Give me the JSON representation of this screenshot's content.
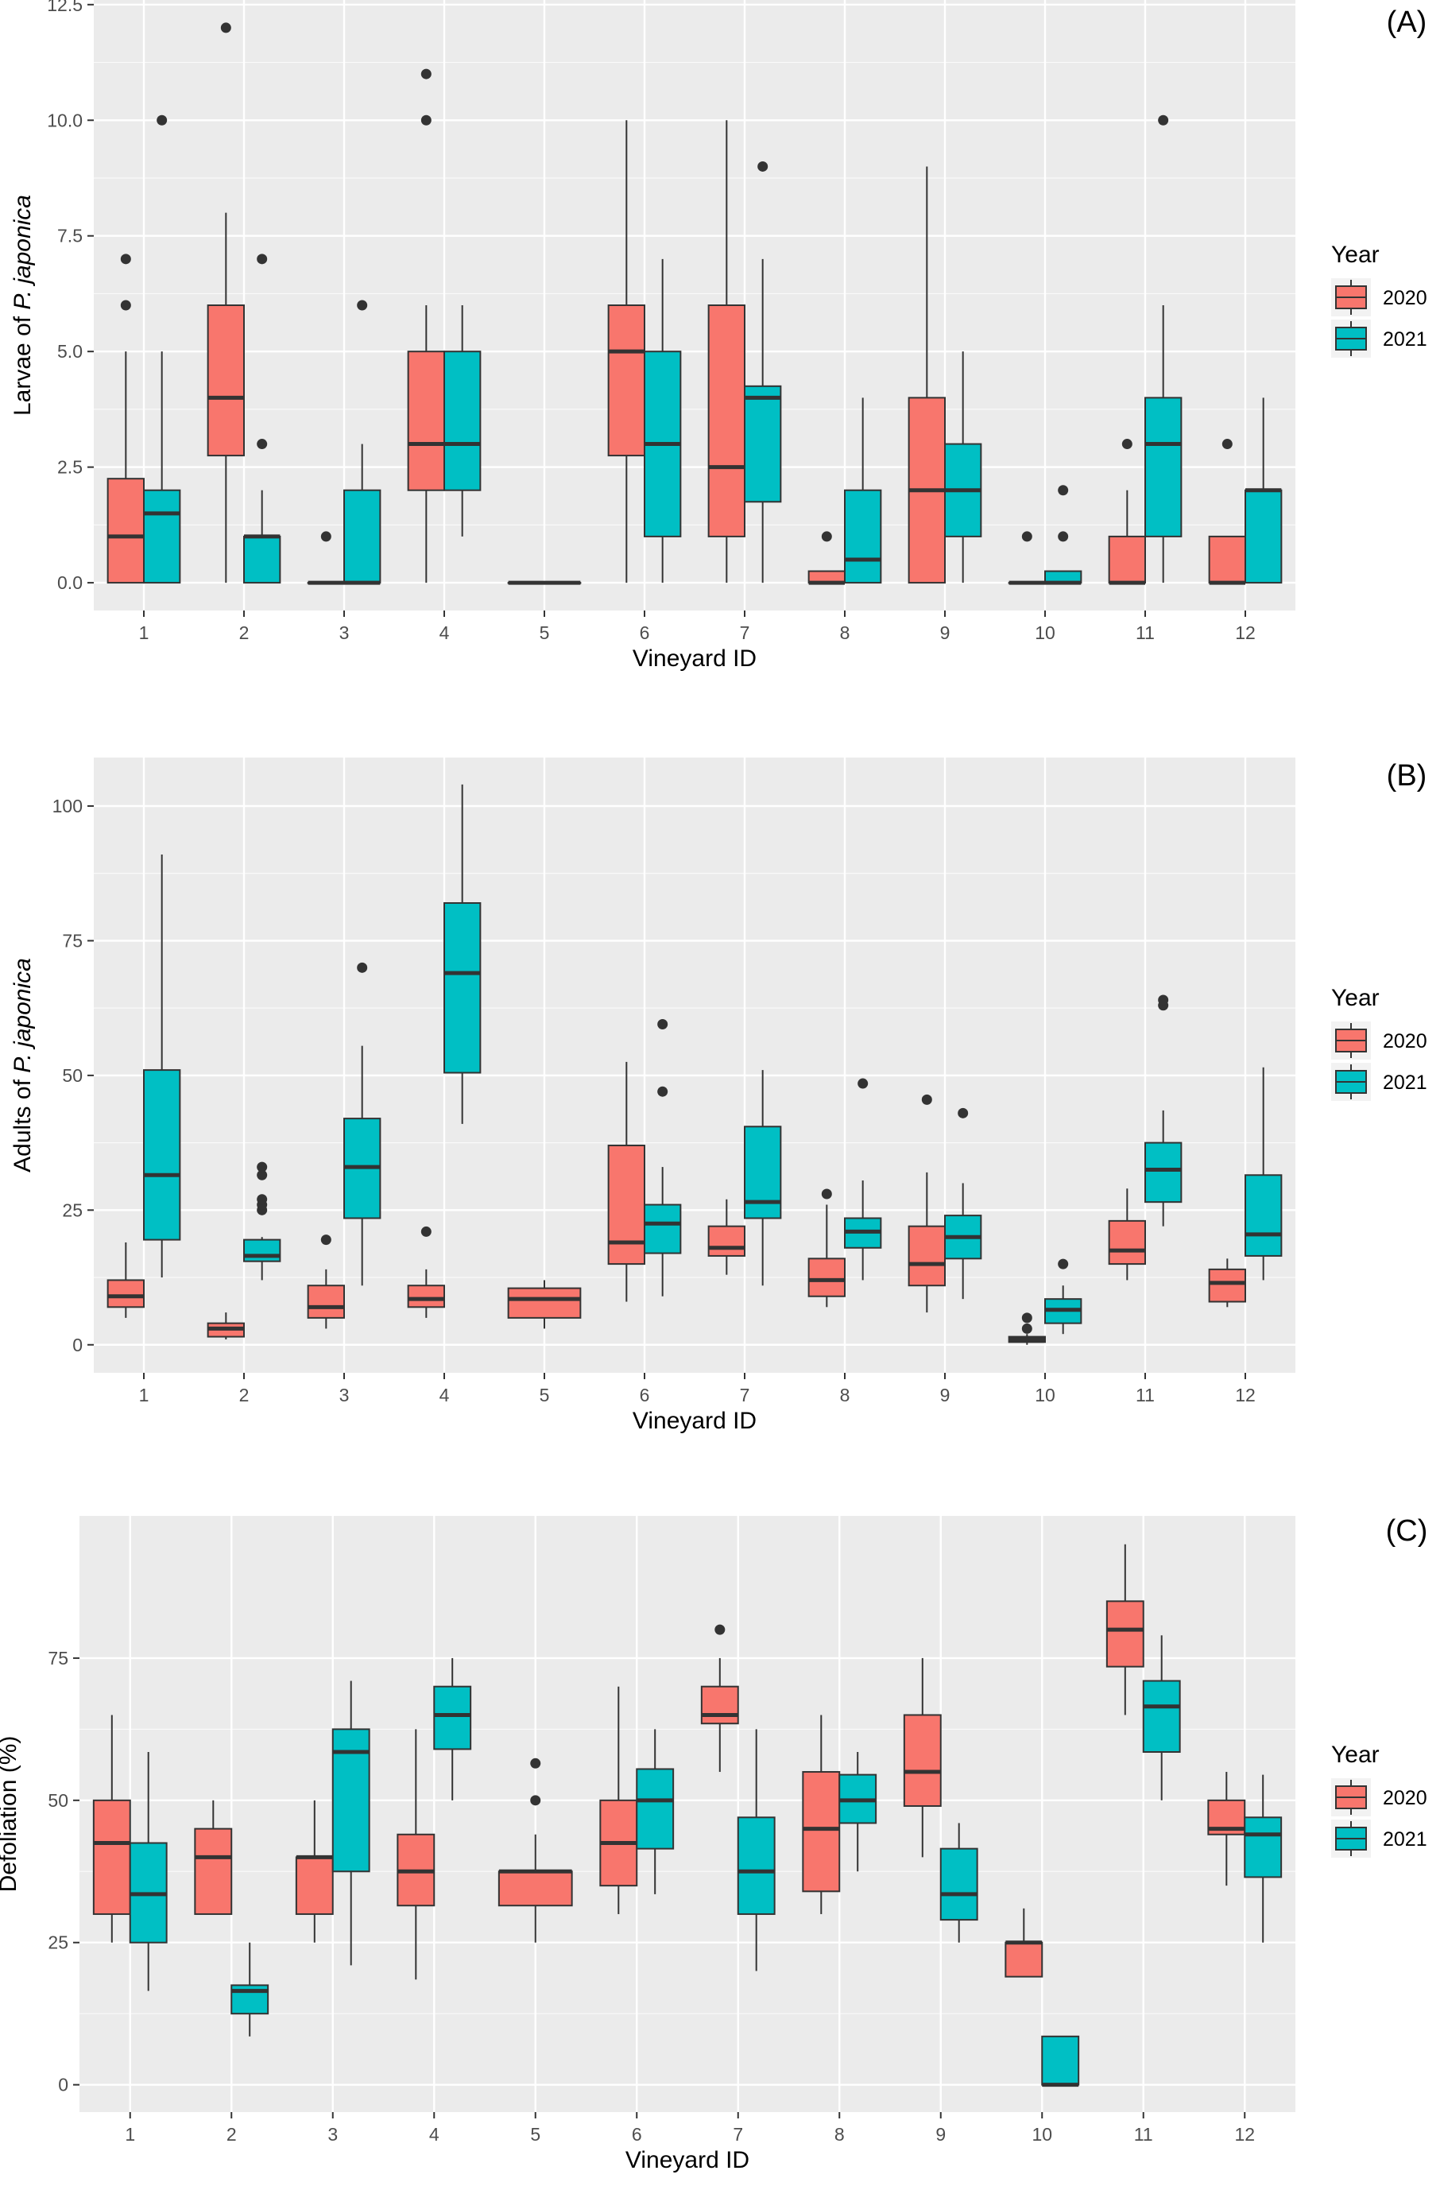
{
  "colors": {
    "year_2020": "#F8766D",
    "year_2021": "#00BFC4",
    "panel_bg": "#EBEBEB",
    "grid": "#FFFFFF",
    "box_stroke": "#333333",
    "text": "#4D4D4D"
  },
  "legend": {
    "title": "Year",
    "entries": [
      "2020",
      "2021"
    ]
  },
  "chart_data": [
    {
      "type": "boxplot",
      "panel_label": "(A)",
      "xlabel": "Vineyard ID",
      "ylabel_prefix": "Larvae of ",
      "ylabel_italic": "P. japonica",
      "ylabel_suffix": "",
      "categories": [
        "1",
        "2",
        "3",
        "4",
        "5",
        "6",
        "7",
        "8",
        "9",
        "10",
        "11",
        "12"
      ],
      "yticks": [
        "0.0",
        "2.5",
        "5.0",
        "7.5",
        "10.0",
        "12.5"
      ],
      "ytick_values": [
        0,
        2.5,
        5,
        7.5,
        10,
        12.5
      ],
      "ylim": [
        -0.6,
        12.6
      ],
      "grid": true,
      "legend_position": "right",
      "series": [
        {
          "name": "2020",
          "boxes": [
            {
              "x": "1",
              "min": 0,
              "q1": 0,
              "median": 1,
              "q3": 2.25,
              "max": 5,
              "outliers": [
                6,
                7
              ]
            },
            {
              "x": "2",
              "min": 0,
              "q1": 2.75,
              "median": 4,
              "q3": 6,
              "max": 8,
              "outliers": [
                12
              ]
            },
            {
              "x": "3",
              "min": 0,
              "q1": 0,
              "median": 0,
              "q3": 0,
              "max": 0,
              "outliers": [
                1
              ]
            },
            {
              "x": "4",
              "min": 0,
              "q1": 2,
              "median": 3,
              "q3": 5,
              "max": 6,
              "outliers": [
                10,
                11
              ]
            },
            {
              "x": "5",
              "min": 0,
              "q1": 0,
              "median": 0,
              "q3": 0,
              "max": 0,
              "outliers": []
            },
            {
              "x": "6",
              "min": 0,
              "q1": 2.75,
              "median": 5,
              "q3": 6,
              "max": 10,
              "outliers": []
            },
            {
              "x": "7",
              "min": 0,
              "q1": 1,
              "median": 2.5,
              "q3": 6,
              "max": 10,
              "outliers": []
            },
            {
              "x": "8",
              "min": 0,
              "q1": 0,
              "median": 0,
              "q3": 0.25,
              "max": 0.25,
              "outliers": [
                1
              ]
            },
            {
              "x": "9",
              "min": 0,
              "q1": 0,
              "median": 2,
              "q3": 4,
              "max": 9,
              "outliers": []
            },
            {
              "x": "10",
              "min": 0,
              "q1": 0,
              "median": 0,
              "q3": 0,
              "max": 0,
              "outliers": [
                1
              ]
            },
            {
              "x": "11",
              "min": 0,
              "q1": 0,
              "median": 0,
              "q3": 1,
              "max": 2,
              "outliers": [
                3
              ]
            },
            {
              "x": "12",
              "min": 0,
              "q1": 0,
              "median": 0,
              "q3": 1,
              "max": 1,
              "outliers": [
                3
              ]
            }
          ]
        },
        {
          "name": "2021",
          "boxes": [
            {
              "x": "1",
              "min": 0,
              "q1": 0,
              "median": 1.5,
              "q3": 2,
              "max": 5,
              "outliers": [
                10
              ]
            },
            {
              "x": "2",
              "min": 0,
              "q1": 0,
              "median": 1,
              "q3": 1,
              "max": 2,
              "outliers": [
                3,
                7
              ]
            },
            {
              "x": "3",
              "min": 0,
              "q1": 0,
              "median": 0,
              "q3": 2,
              "max": 3,
              "outliers": [
                6
              ]
            },
            {
              "x": "4",
              "min": 1,
              "q1": 2,
              "median": 3,
              "q3": 5,
              "max": 6,
              "outliers": []
            },
            {
              "x": "5",
              "min": 0,
              "q1": 0,
              "median": 0,
              "q3": 0,
              "max": 0,
              "outliers": []
            },
            {
              "x": "6",
              "min": 0,
              "q1": 1,
              "median": 3,
              "q3": 5,
              "max": 7,
              "outliers": []
            },
            {
              "x": "7",
              "min": 0,
              "q1": 1.75,
              "median": 4,
              "q3": 4.25,
              "max": 7,
              "outliers": [
                9
              ]
            },
            {
              "x": "8",
              "min": 0,
              "q1": 0,
              "median": 0.5,
              "q3": 2,
              "max": 4,
              "outliers": []
            },
            {
              "x": "9",
              "min": 0,
              "q1": 1,
              "median": 2,
              "q3": 3,
              "max": 5,
              "outliers": []
            },
            {
              "x": "10",
              "min": 0,
              "q1": 0,
              "median": 0,
              "q3": 0.25,
              "max": 0.25,
              "outliers": [
                1,
                2
              ]
            },
            {
              "x": "11",
              "min": 0,
              "q1": 1,
              "median": 3,
              "q3": 4,
              "max": 6,
              "outliers": [
                10
              ]
            },
            {
              "x": "12",
              "min": 0,
              "q1": 0,
              "median": 2,
              "q3": 2,
              "max": 4,
              "outliers": []
            }
          ]
        }
      ]
    },
    {
      "type": "boxplot",
      "panel_label": "(B)",
      "xlabel": "Vineyard ID",
      "ylabel_prefix": "Adults of ",
      "ylabel_italic": "P. japonica",
      "ylabel_suffix": "",
      "categories": [
        "1",
        "2",
        "3",
        "4",
        "5",
        "6",
        "7",
        "8",
        "9",
        "10",
        "11",
        "12"
      ],
      "yticks": [
        "0",
        "25",
        "50",
        "75",
        "100"
      ],
      "ytick_values": [
        0,
        25,
        50,
        75,
        100
      ],
      "ylim": [
        -5.2,
        109
      ],
      "grid": true,
      "legend_position": "right",
      "series": [
        {
          "name": "2020",
          "boxes": [
            {
              "x": "1",
              "min": 5,
              "q1": 7,
              "median": 9,
              "q3": 12,
              "max": 19,
              "outliers": []
            },
            {
              "x": "2",
              "min": 1,
              "q1": 1.5,
              "median": 3,
              "q3": 4,
              "max": 6,
              "outliers": []
            },
            {
              "x": "3",
              "min": 3,
              "q1": 5,
              "median": 7,
              "q3": 11,
              "max": 14,
              "outliers": [
                19.5
              ]
            },
            {
              "x": "4",
              "min": 5,
              "q1": 7,
              "median": 8.5,
              "q3": 11,
              "max": 14,
              "outliers": [
                21
              ]
            },
            {
              "x": "5",
              "min": 3,
              "q1": 5,
              "median": 8.5,
              "q3": 10.5,
              "max": 12,
              "outliers": []
            },
            {
              "x": "6",
              "min": 8,
              "q1": 15,
              "median": 19,
              "q3": 37,
              "max": 52.5,
              "outliers": []
            },
            {
              "x": "7",
              "min": 13,
              "q1": 16.5,
              "median": 18,
              "q3": 22,
              "max": 27,
              "outliers": []
            },
            {
              "x": "8",
              "min": 7,
              "q1": 9,
              "median": 12,
              "q3": 16,
              "max": 26,
              "outliers": [
                28
              ]
            },
            {
              "x": "9",
              "min": 6,
              "q1": 11,
              "median": 15,
              "q3": 22,
              "max": 32,
              "outliers": [
                45.5
              ]
            },
            {
              "x": "10",
              "min": 0,
              "q1": 0.5,
              "median": 1,
              "q3": 1.5,
              "max": 2,
              "outliers": [
                3,
                5
              ]
            },
            {
              "x": "11",
              "min": 12,
              "q1": 15,
              "median": 17.5,
              "q3": 23,
              "max": 29,
              "outliers": []
            },
            {
              "x": "12",
              "min": 7,
              "q1": 8,
              "median": 11.5,
              "q3": 14,
              "max": 16,
              "outliers": []
            }
          ]
        },
        {
          "name": "2021",
          "boxes": [
            {
              "x": "1",
              "min": 12.5,
              "q1": 19.5,
              "median": 31.5,
              "q3": 51,
              "max": 91,
              "outliers": []
            },
            {
              "x": "2",
              "min": 12,
              "q1": 15.5,
              "median": 16.5,
              "q3": 19.5,
              "max": 20,
              "outliers": [
                25,
                26,
                27,
                31.5,
                33
              ]
            },
            {
              "x": "3",
              "min": 11,
              "q1": 23.5,
              "median": 33,
              "q3": 42,
              "max": 55.5,
              "outliers": [
                70
              ]
            },
            {
              "x": "4",
              "min": 41,
              "q1": 50.5,
              "median": 69,
              "q3": 82,
              "max": 104,
              "outliers": []
            },
            {
              "x": "6",
              "min": 9,
              "q1": 17,
              "median": 22.5,
              "q3": 26,
              "max": 33,
              "outliers": [
                47,
                59.5
              ]
            },
            {
              "x": "7",
              "min": 11,
              "q1": 23.5,
              "median": 26.5,
              "q3": 40.5,
              "max": 51,
              "outliers": []
            },
            {
              "x": "8",
              "min": 12,
              "q1": 18,
              "median": 21,
              "q3": 23.5,
              "max": 30.5,
              "outliers": [
                48.5
              ]
            },
            {
              "x": "9",
              "min": 8.5,
              "q1": 16,
              "median": 20,
              "q3": 24,
              "max": 30,
              "outliers": [
                43
              ]
            },
            {
              "x": "10",
              "min": 2,
              "q1": 4,
              "median": 6.5,
              "q3": 8.5,
              "max": 11,
              "outliers": [
                15
              ]
            },
            {
              "x": "11",
              "min": 22,
              "q1": 26.5,
              "median": 32.5,
              "q3": 37.5,
              "max": 43.5,
              "outliers": [
                63,
                64
              ]
            },
            {
              "x": "12",
              "min": 12,
              "q1": 16.5,
              "median": 20.5,
              "q3": 31.5,
              "max": 51.5,
              "outliers": []
            }
          ]
        }
      ]
    },
    {
      "type": "boxplot",
      "panel_label": "(C)",
      "xlabel": "Vineyard ID",
      "ylabel_prefix": "Defoliation (%)",
      "ylabel_italic": "",
      "ylabel_suffix": "",
      "categories": [
        "1",
        "2",
        "3",
        "4",
        "5",
        "6",
        "7",
        "8",
        "9",
        "10",
        "11",
        "12"
      ],
      "yticks": [
        "0",
        "25",
        "50",
        "75"
      ],
      "ytick_values": [
        0,
        25,
        50,
        75
      ],
      "ylim": [
        -4.8,
        100
      ],
      "grid": true,
      "legend_position": "right",
      "series": [
        {
          "name": "2020",
          "boxes": [
            {
              "x": "1",
              "min": 25,
              "q1": 30,
              "median": 42.5,
              "q3": 50,
              "max": 65,
              "outliers": []
            },
            {
              "x": "2",
              "min": 30,
              "q1": 30,
              "median": 40,
              "q3": 45,
              "max": 50,
              "outliers": []
            },
            {
              "x": "3",
              "min": 25,
              "q1": 30,
              "median": 40,
              "q3": 40,
              "max": 50,
              "outliers": []
            },
            {
              "x": "4",
              "min": 18.5,
              "q1": 31.5,
              "median": 37.5,
              "q3": 44,
              "max": 62.5,
              "outliers": []
            },
            {
              "x": "5",
              "min": 25,
              "q1": 31.5,
              "median": 37.5,
              "q3": 37.5,
              "max": 44,
              "outliers": [
                50,
                56.5
              ]
            },
            {
              "x": "6",
              "min": 30,
              "q1": 35,
              "median": 42.5,
              "q3": 50,
              "max": 70,
              "outliers": []
            },
            {
              "x": "7",
              "min": 55,
              "q1": 63.5,
              "median": 65,
              "q3": 70,
              "max": 75,
              "outliers": [
                80
              ]
            },
            {
              "x": "8",
              "min": 30,
              "q1": 34,
              "median": 45,
              "q3": 55,
              "max": 65,
              "outliers": []
            },
            {
              "x": "9",
              "min": 40,
              "q1": 49,
              "median": 55,
              "q3": 65,
              "max": 75,
              "outliers": []
            },
            {
              "x": "10",
              "min": 19,
              "q1": 19,
              "median": 25,
              "q3": 25,
              "max": 31,
              "outliers": []
            },
            {
              "x": "11",
              "min": 65,
              "q1": 73.5,
              "median": 80,
              "q3": 85,
              "max": 95,
              "outliers": []
            },
            {
              "x": "12",
              "min": 35,
              "q1": 44,
              "median": 45,
              "q3": 50,
              "max": 55,
              "outliers": []
            }
          ]
        },
        {
          "name": "2021",
          "boxes": [
            {
              "x": "1",
              "min": 16.5,
              "q1": 25,
              "median": 33.5,
              "q3": 42.5,
              "max": 58.5,
              "outliers": []
            },
            {
              "x": "2",
              "min": 8.5,
              "q1": 12.5,
              "median": 16.5,
              "q3": 17.5,
              "max": 25,
              "outliers": []
            },
            {
              "x": "3",
              "min": 21,
              "q1": 37.5,
              "median": 58.5,
              "q3": 62.5,
              "max": 71,
              "outliers": []
            },
            {
              "x": "4",
              "min": 50,
              "q1": 59,
              "median": 65,
              "q3": 70,
              "max": 75,
              "outliers": []
            },
            {
              "x": "6",
              "min": 33.5,
              "q1": 41.5,
              "median": 50,
              "q3": 55.5,
              "max": 62.5,
              "outliers": []
            },
            {
              "x": "7",
              "min": 20,
              "q1": 30,
              "median": 37.5,
              "q3": 47,
              "max": 62.5,
              "outliers": []
            },
            {
              "x": "8",
              "min": 37.5,
              "q1": 46,
              "median": 50,
              "q3": 54.5,
              "max": 58.5,
              "outliers": []
            },
            {
              "x": "9",
              "min": 25,
              "q1": 29,
              "median": 33.5,
              "q3": 41.5,
              "max": 46,
              "outliers": []
            },
            {
              "x": "10",
              "min": 0,
              "q1": 0,
              "median": 0,
              "q3": 8.5,
              "max": 8.5,
              "outliers": []
            },
            {
              "x": "11",
              "min": 50,
              "q1": 58.5,
              "median": 66.5,
              "q3": 71,
              "max": 79,
              "outliers": []
            },
            {
              "x": "12",
              "min": 25,
              "q1": 36.5,
              "median": 44,
              "q3": 47,
              "max": 54.5,
              "outliers": []
            }
          ]
        }
      ]
    }
  ]
}
